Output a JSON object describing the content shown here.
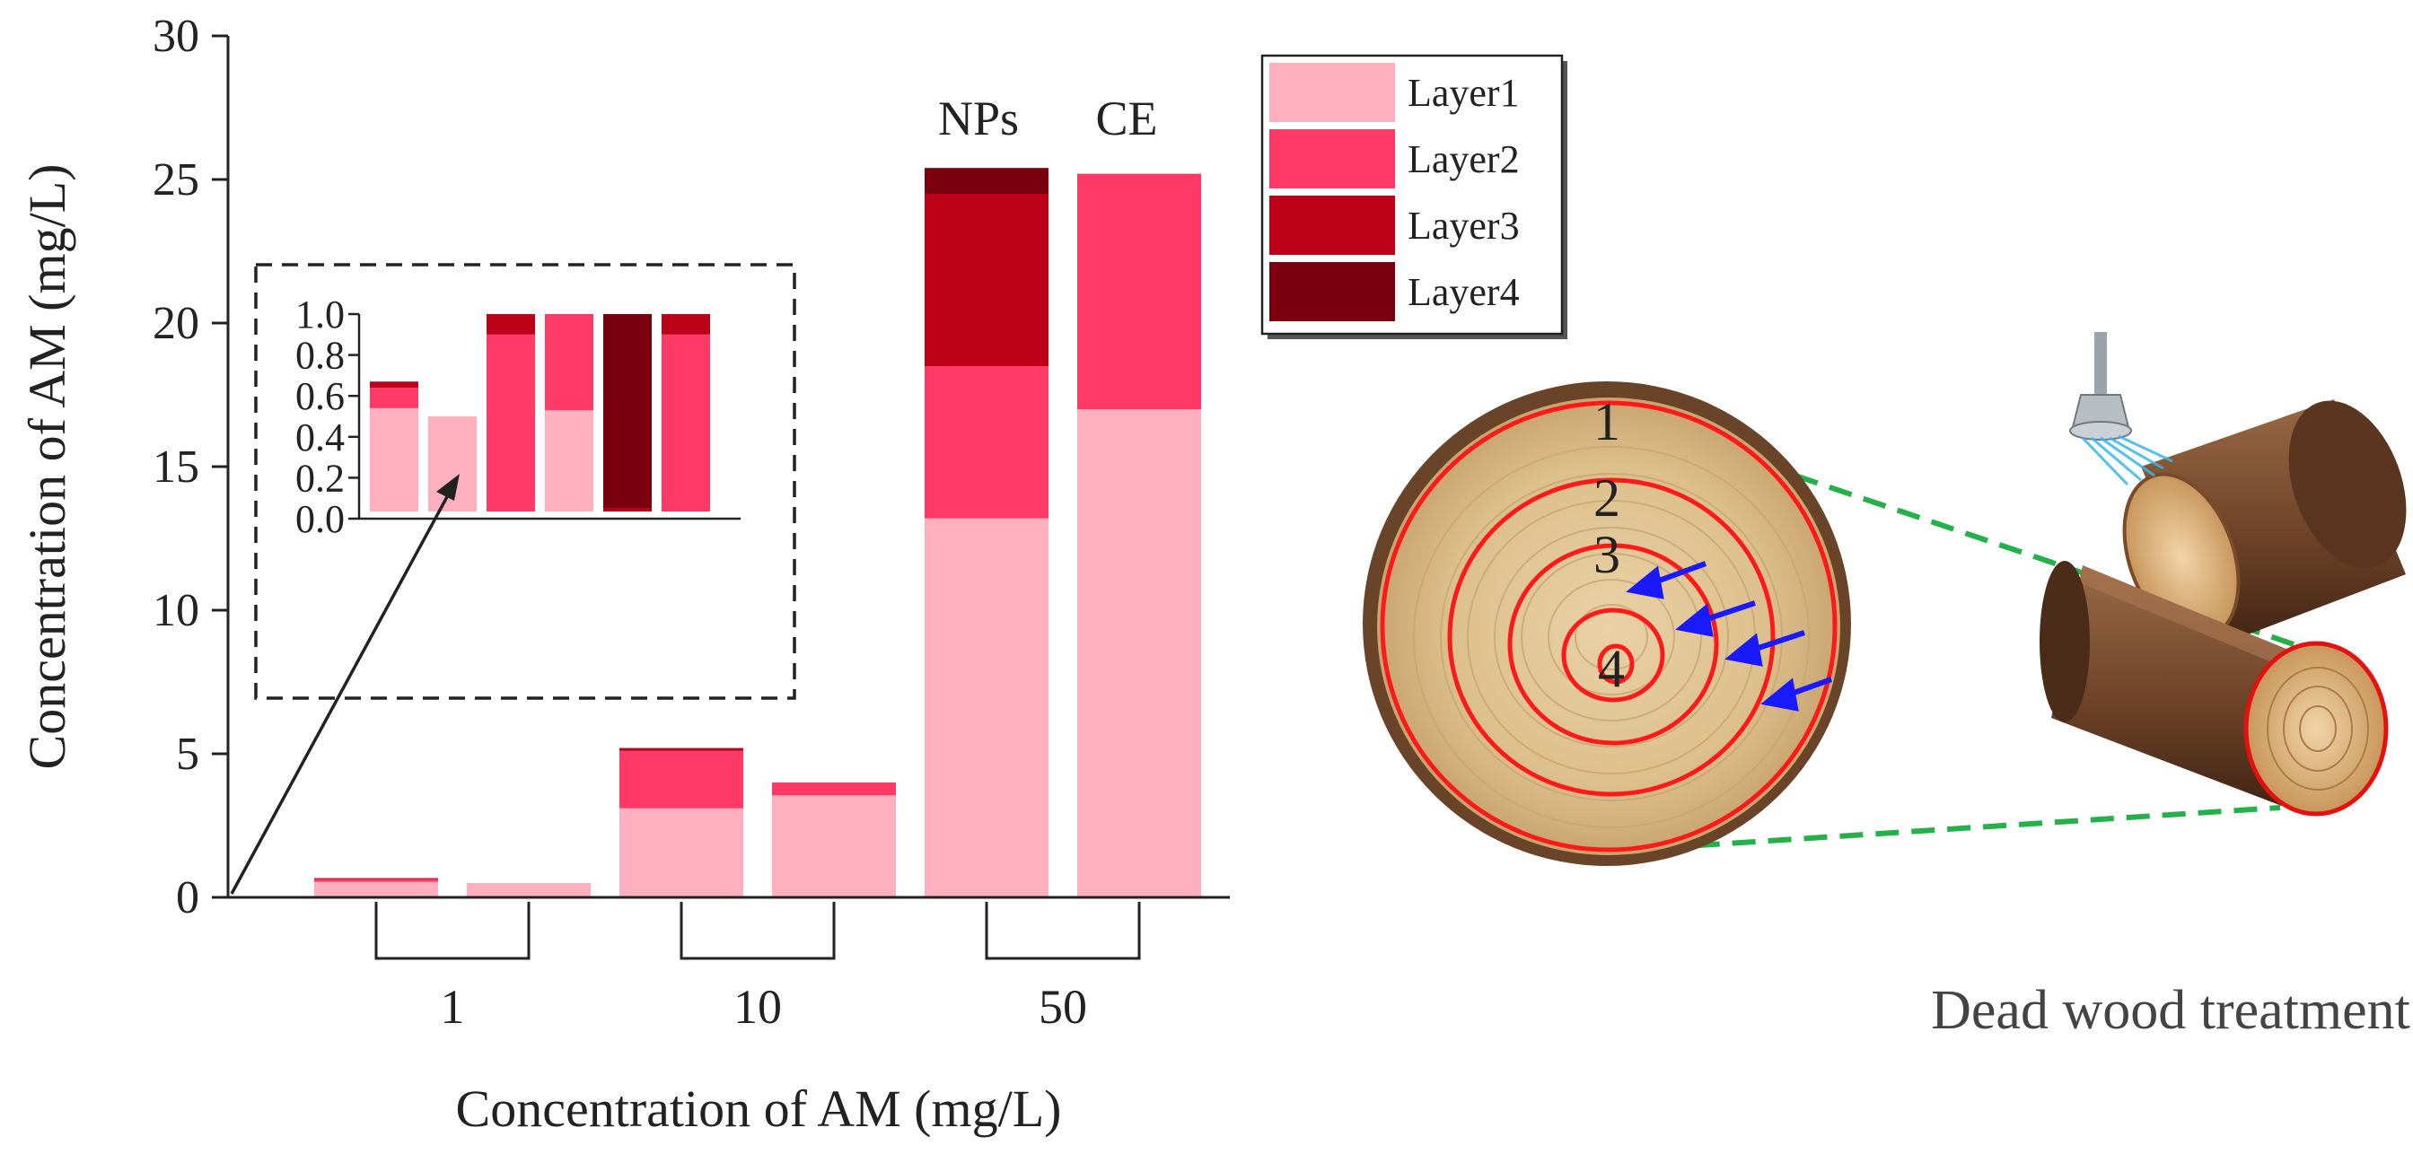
{
  "chart_data": [
    {
      "type": "bar",
      "stacked": true,
      "xlabel": "Concentration of AM (mg/L)",
      "ylabel": "Concentration of AM (mg/L)",
      "ylim": [
        0,
        30
      ],
      "yticks": [
        "0",
        "5",
        "10",
        "15",
        "20",
        "25",
        "30"
      ],
      "groups": [
        "1",
        "10",
        "50"
      ],
      "bar_labels": [
        "NPs",
        "CE"
      ],
      "bars": [
        "1 NPs",
        "1 CE",
        "10 NPs",
        "10 CE",
        "50 NPs",
        "50 CE"
      ],
      "series": [
        {
          "name": "Layer1",
          "color": "#ffb0bf",
          "values": [
            0.54,
            0.5,
            3.1,
            3.55,
            13.2,
            17.0
          ]
        },
        {
          "name": "Layer2",
          "color": "#ff3a67",
          "values": [
            0.1,
            0.0,
            2.0,
            0.45,
            5.3,
            8.2
          ]
        },
        {
          "name": "Layer3",
          "color": "#bb0018",
          "values": [
            0.03,
            0.0,
            0.1,
            0.0,
            6.0,
            0.0
          ]
        },
        {
          "name": "Layer4",
          "color": "#7a000f",
          "values": [
            0.0,
            0.0,
            0.0,
            0.0,
            0.9,
            0.0
          ]
        }
      ],
      "legend_position": "top-right"
    },
    {
      "type": "bar",
      "stacked": true,
      "inset": true,
      "ylim": [
        0,
        1.0
      ],
      "yticks": [
        "0.0",
        "0.2",
        "0.4",
        "0.6",
        "0.8",
        "1.0"
      ],
      "bars": [
        "1 NPs",
        "1 CE",
        "10 NPs",
        "10 CE",
        "50 NPs",
        "50 CE"
      ],
      "series": [
        {
          "name": "Layer1",
          "color": "#ffb0bf",
          "values": [
            0.54,
            0.5,
            0.0,
            0.53,
            0.0,
            0.0
          ]
        },
        {
          "name": "Layer2",
          "color": "#ff3a67",
          "values": [
            0.1,
            0.0,
            0.9,
            0.49,
            0.0,
            0.9
          ]
        },
        {
          "name": "Layer3",
          "color": "#bb0018",
          "values": [
            0.03,
            0.0,
            0.1,
            0.0,
            0.05,
            0.1
          ]
        },
        {
          "name": "Layer4",
          "color": "#7a000f",
          "values": [
            0.0,
            0.0,
            0.0,
            0.0,
            0.97,
            0.0
          ]
        }
      ]
    }
  ],
  "illustration": {
    "ring_labels": [
      "1",
      "2",
      "3",
      "4"
    ],
    "caption": "Dead wood treatment",
    "icons": [
      "wood-cross-section",
      "log-pile",
      "shower-head-icon",
      "arrow-icon"
    ]
  }
}
